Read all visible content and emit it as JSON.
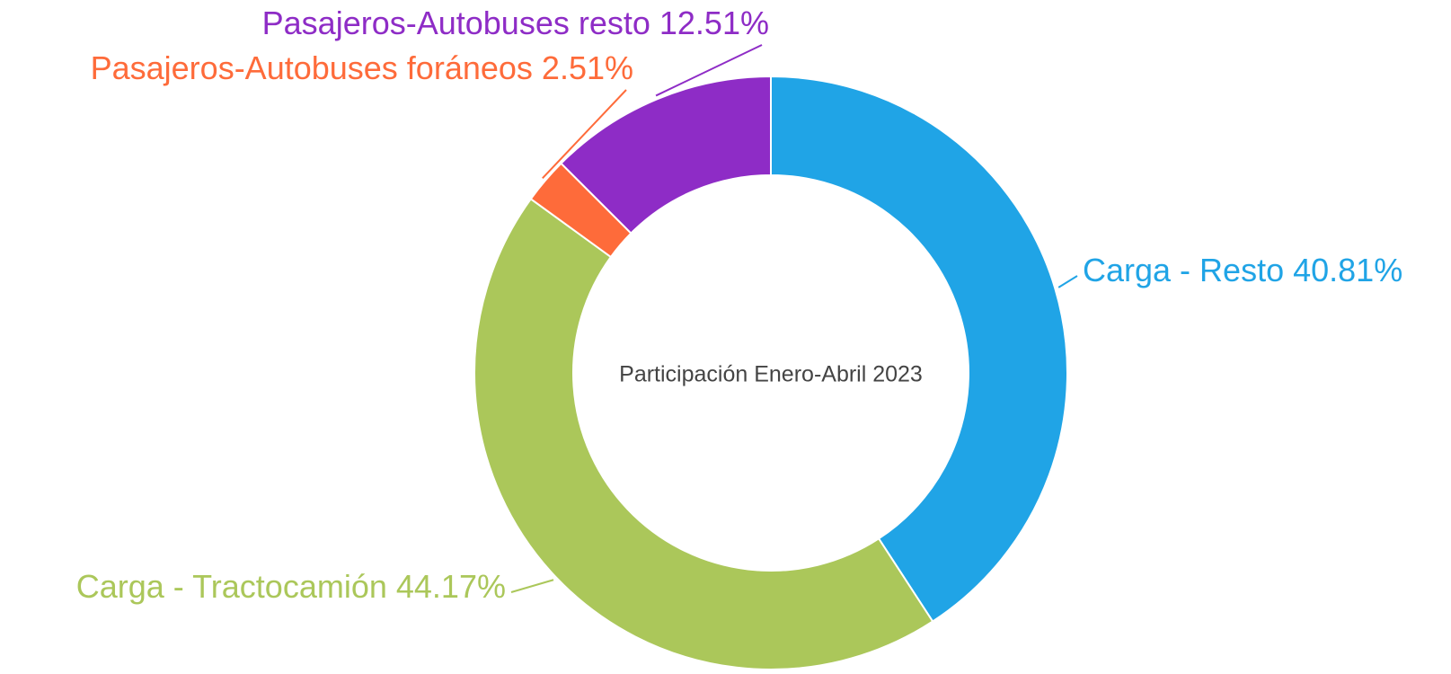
{
  "chart_data": {
    "type": "donut",
    "title": "Participación Enero-Abril 2023",
    "categories": [
      "Carga - Resto",
      "Carga - Tractocamión",
      "Pasajeros-Autobuses foráneos",
      "Pasajeros-Autobuses resto"
    ],
    "values": [
      40.81,
      44.17,
      2.51,
      12.51
    ],
    "value_labels": [
      "40.81%",
      "44.17%",
      "2.51%",
      "12.51%"
    ],
    "colors": [
      "#20a4e6",
      "#abc75a",
      "#fe6b3a",
      "#8e2cc6"
    ]
  }
}
